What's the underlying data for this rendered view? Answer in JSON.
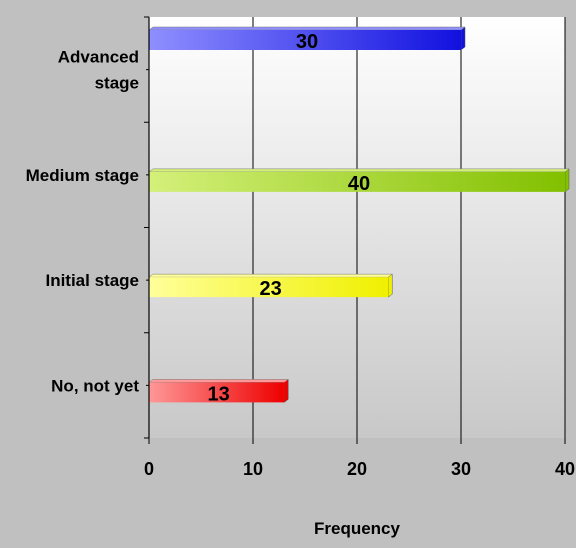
{
  "chart_data": {
    "type": "bar",
    "orientation": "horizontal",
    "categories": [
      "Advanced stage",
      "Medium stage",
      "Initial stage",
      "No, not yet"
    ],
    "category_labels": [
      [
        "Advanced",
        "stage"
      ],
      [
        "Medium stage"
      ],
      [
        "Initial stage"
      ],
      [
        "No, not yet"
      ]
    ],
    "values": [
      30,
      40,
      23,
      13
    ],
    "bar_colors": [
      {
        "from": "#8f8fff",
        "to": "#1111e0"
      },
      {
        "from": "#d4f07a",
        "to": "#82c000"
      },
      {
        "from": "#ffff9a",
        "to": "#f0f000"
      },
      {
        "from": "#ff9898",
        "to": "#ee0000"
      }
    ],
    "xlabel": "Frequency",
    "xlim": [
      0,
      40
    ],
    "xticks": [
      0,
      10,
      20,
      30,
      40
    ],
    "grid": true,
    "legend": "none"
  }
}
